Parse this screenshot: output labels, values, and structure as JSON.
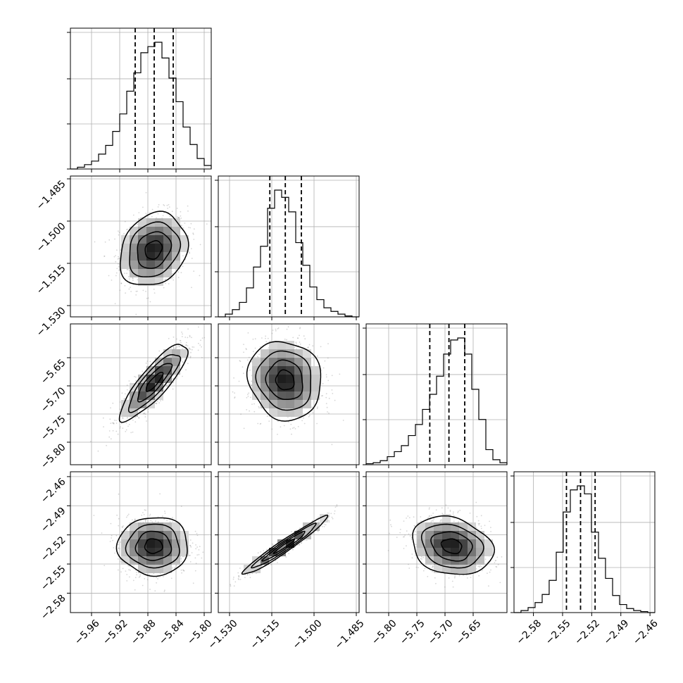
{
  "chart_data": {
    "type": "corner",
    "title": "",
    "variables": [
      {
        "label": "",
        "range": [
          -5.99,
          -5.79
        ],
        "ticks": [
          "−5.96",
          "−5.92",
          "−5.88",
          "−5.84",
          "−5.80"
        ],
        "tick_values": [
          -5.96,
          -5.92,
          -5.88,
          -5.84,
          -5.8
        ],
        "quantiles": [
          -5.898,
          -5.871,
          -5.844
        ],
        "hist_bins": [
          -5.99,
          -5.98,
          -5.97,
          -5.96,
          -5.95,
          -5.94,
          -5.93,
          -5.92,
          -5.91,
          -5.9,
          -5.89,
          -5.88,
          -5.87,
          -5.86,
          -5.85,
          -5.84,
          -5.83,
          -5.82,
          -5.81,
          -5.8,
          -5.79
        ],
        "hist_counts": [
          0,
          2,
          5,
          9,
          17,
          27,
          43,
          63,
          89,
          110,
          133,
          140,
          145,
          127,
          104,
          77,
          48,
          28,
          12,
          4
        ]
      },
      {
        "label": "",
        "range": [
          -1.534,
          -1.484
        ],
        "ticks": [
          "−1.485",
          "−1.500",
          "−1.515",
          "−1.530"
        ],
        "tick_values": [
          -1.485,
          -1.5,
          -1.515,
          -1.53
        ],
        "quantiles": [
          -1.5157,
          -1.5102,
          -1.5045
        ],
        "hist_bins": [
          -1.534,
          -1.5315,
          -1.529,
          -1.5265,
          -1.524,
          -1.5215,
          -1.519,
          -1.5165,
          -1.514,
          -1.5115,
          -1.509,
          -1.5065,
          -1.504,
          -1.5015,
          -1.499,
          -1.4965,
          -1.494,
          -1.4915,
          -1.489,
          -1.4865,
          -1.484
        ],
        "hist_counts": [
          0,
          3,
          8,
          16,
          32,
          55,
          78,
          120,
          140,
          132,
          116,
          82,
          57,
          33,
          19,
          10,
          6,
          3,
          1,
          0
        ]
      },
      {
        "label": "",
        "range": [
          -5.84,
          -5.59
        ],
        "ticks": [
          "−5.65",
          "−5.70",
          "−5.75",
          "−5.80"
        ],
        "tick_values": [
          -5.65,
          -5.7,
          -5.75,
          -5.8
        ],
        "quantiles": [
          -5.727,
          -5.693,
          -5.665
        ],
        "hist_bins": [
          -5.84,
          -5.8275,
          -5.815,
          -5.8025,
          -5.79,
          -5.7775,
          -5.765,
          -5.7525,
          -5.74,
          -5.7275,
          -5.715,
          -5.7025,
          -5.69,
          -5.6775,
          -5.665,
          -5.6525,
          -5.64,
          -5.6275,
          -5.615,
          -5.6025,
          -5.59
        ],
        "hist_counts": [
          1,
          2,
          4,
          8,
          13,
          19,
          29,
          40,
          55,
          70,
          88,
          110,
          124,
          126,
          110,
          75,
          45,
          15,
          5,
          2
        ]
      },
      {
        "label": "",
        "range": [
          -2.6,
          -2.455
        ],
        "ticks": [
          "−2.58",
          "−2.55",
          "−2.52",
          "−2.49",
          "−2.46"
        ],
        "tick_values": [
          -2.58,
          -2.55,
          -2.52,
          -2.49,
          -2.46
        ],
        "quantiles": [
          -2.546,
          -2.5315,
          -2.5165
        ],
        "hist_bins": [
          -2.6,
          -2.5928,
          -2.5855,
          -2.5783,
          -2.571,
          -2.5638,
          -2.5565,
          -2.5493,
          -2.542,
          -2.5348,
          -2.5275,
          -2.5203,
          -2.513,
          -2.5058,
          -2.4985,
          -2.4913,
          -2.484,
          -2.4768,
          -2.4695,
          -2.4623,
          -2.455
        ],
        "hist_counts": [
          0,
          2,
          5,
          10,
          18,
          32,
          60,
          100,
          122,
          126,
          118,
          80,
          54,
          34,
          17,
          8,
          4,
          2,
          1,
          0
        ]
      }
    ],
    "pairs": [
      {
        "x": 0,
        "y": 1,
        "center": [
          -5.872,
          -1.5102
        ],
        "sigma": [
          0.024,
          0.0065
        ],
        "corr": 0.2
      },
      {
        "x": 0,
        "y": 2,
        "center": [
          -5.871,
          -5.693
        ],
        "sigma": [
          0.024,
          0.034
        ],
        "corr": 0.85
      },
      {
        "x": 0,
        "y": 3,
        "center": [
          -5.872,
          -2.5315
        ],
        "sigma": [
          0.025,
          0.015
        ],
        "corr": 0.0
      },
      {
        "x": 1,
        "y": 2,
        "center": [
          -1.5103,
          -5.69
        ],
        "sigma": [
          0.0065,
          0.035
        ],
        "corr": -0.1
      },
      {
        "x": 1,
        "y": 3,
        "center": [
          -1.5105,
          -2.5315
        ],
        "sigma": [
          0.0075,
          0.015
        ],
        "corr": 0.97
      },
      {
        "x": 2,
        "y": 3,
        "center": [
          -5.688,
          -2.5315
        ],
        "sigma": [
          0.036,
          0.015
        ],
        "corr": -0.2
      }
    ],
    "contour_levels_sigma": [
      0.5,
      1.0,
      1.5,
      2.0
    ],
    "grid": true,
    "legend": "none"
  },
  "colors": {
    "axis": "#000000",
    "grid": "#b0b0b0",
    "line": "#000000",
    "points": "#8a8a8a"
  }
}
